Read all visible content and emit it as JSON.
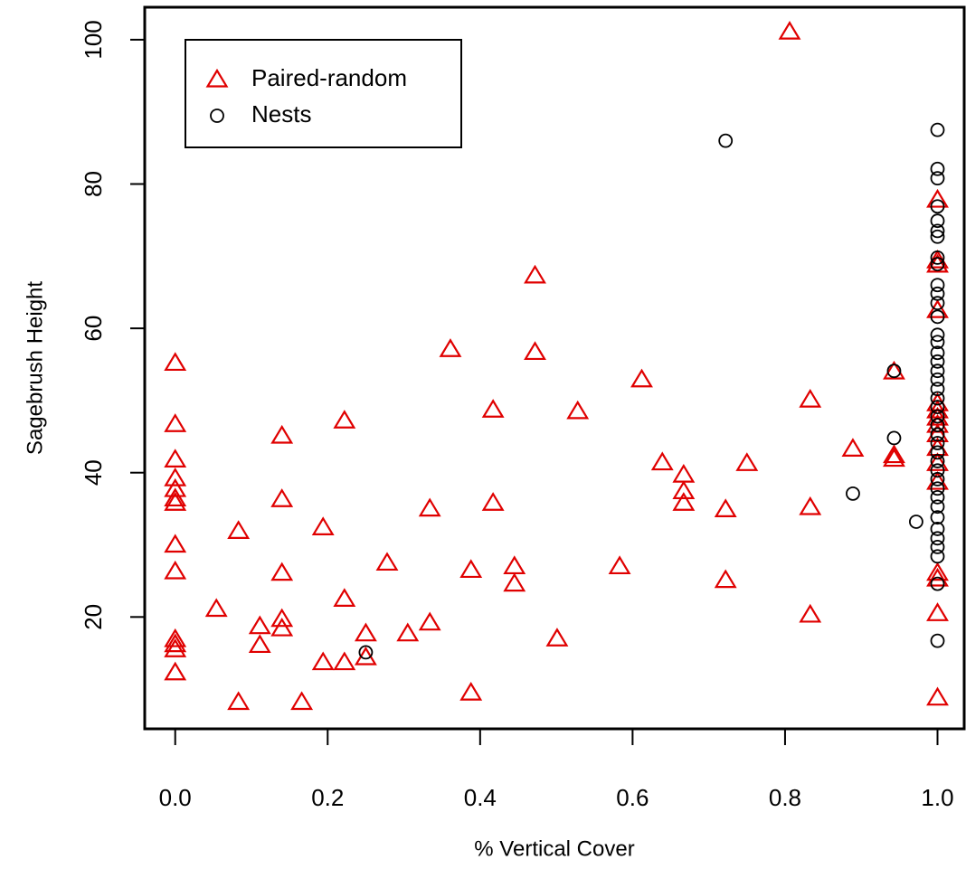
{
  "chart_data": {
    "type": "scatter",
    "xlabel": "% Vertical Cover",
    "ylabel": "Sagebrush Height",
    "xlim": [
      -0.04,
      1.035
    ],
    "ylim": [
      4.5,
      104.5
    ],
    "xticks": [
      {
        "value": 0,
        "label": "0.0"
      },
      0.2,
      0.4,
      0.6,
      0.8,
      {
        "value": 1,
        "label": "1.0"
      }
    ],
    "yticks": [
      20,
      40,
      60,
      80,
      100
    ],
    "legend": "top-left",
    "series": [
      {
        "name": "Paired-random",
        "color": "#e00000",
        "marker": "triangle",
        "x": [
          0,
          0,
          0,
          0,
          0,
          0,
          0,
          0,
          0,
          0,
          0,
          0,
          0,
          0.054,
          0.083,
          0.083,
          0.111,
          0.111,
          0.14,
          0.14,
          0.14,
          0.14,
          0.14,
          0.166,
          0.194,
          0.194,
          0.222,
          0.222,
          0.222,
          0.25,
          0.25,
          0.278,
          0.305,
          0.334,
          0.334,
          0.361,
          0.388,
          0.388,
          0.417,
          0.417,
          0.445,
          0.445,
          0.472,
          0.472,
          0.501,
          0.528,
          0.583,
          0.612,
          0.639,
          0.667,
          0.667,
          0.667,
          0.722,
          0.722,
          0.75,
          0.806,
          0.833,
          0.833,
          0.833,
          0.889,
          0.943,
          0.943,
          0.943,
          1,
          1,
          1,
          1,
          1,
          1,
          1,
          1,
          1,
          1,
          1,
          1,
          1,
          1,
          1,
          1
        ],
        "values": [
          55.2,
          46.7,
          41.8,
          39.2,
          37.7,
          36.4,
          35.8,
          30,
          26.3,
          16.9,
          16.2,
          15.5,
          12.3,
          21.1,
          8.2,
          31.9,
          18.7,
          16.1,
          45.1,
          36.3,
          26.1,
          19.7,
          18.4,
          8.2,
          32.4,
          13.7,
          47.2,
          22.5,
          13.7,
          17.7,
          14.4,
          27.5,
          17.7,
          35,
          19.2,
          57.1,
          26.5,
          9.5,
          48.7,
          35.8,
          27,
          24.6,
          67.3,
          56.7,
          17,
          48.5,
          27,
          52.9,
          41.4,
          39.7,
          37.4,
          35.8,
          34.9,
          25.1,
          41.3,
          101.1,
          50.1,
          35.2,
          20.3,
          43.3,
          54,
          42.4,
          41.9,
          77.8,
          69.4,
          68.8,
          62.5,
          49.6,
          48.6,
          47.6,
          46.6,
          45.3,
          43.4,
          41.3,
          38.7,
          26.1,
          25.3,
          20.5,
          8.8
        ]
      },
      {
        "name": "Nests",
        "color": "#000000",
        "marker": "circle",
        "x": [
          0.722,
          0.25,
          0.889,
          0.943,
          0.943,
          0.972,
          1,
          1,
          1,
          1,
          1,
          1,
          1,
          1,
          1,
          1,
          1,
          1,
          1,
          1,
          1,
          1,
          1,
          1,
          1,
          1,
          1,
          1,
          1,
          1,
          1,
          1,
          1,
          1,
          1,
          1,
          1,
          1,
          1,
          1,
          1,
          1,
          1,
          1,
          1,
          1
        ],
        "values": [
          86,
          15.1,
          37.1,
          54.1,
          44.8,
          33.2,
          87.5,
          82.1,
          80.8,
          76.9,
          74.9,
          73.5,
          72.7,
          69.8,
          68.9,
          66,
          64.8,
          63.5,
          61.6,
          59.1,
          58.1,
          56.6,
          55.4,
          54.1,
          52.9,
          51.6,
          50.3,
          49.1,
          47.8,
          46.6,
          45.3,
          44.1,
          42.8,
          41.6,
          40.3,
          39.1,
          37.8,
          36.6,
          35.3,
          33.8,
          32.2,
          30.9,
          29.7,
          28.4,
          24.6,
          16.7
        ]
      }
    ]
  }
}
